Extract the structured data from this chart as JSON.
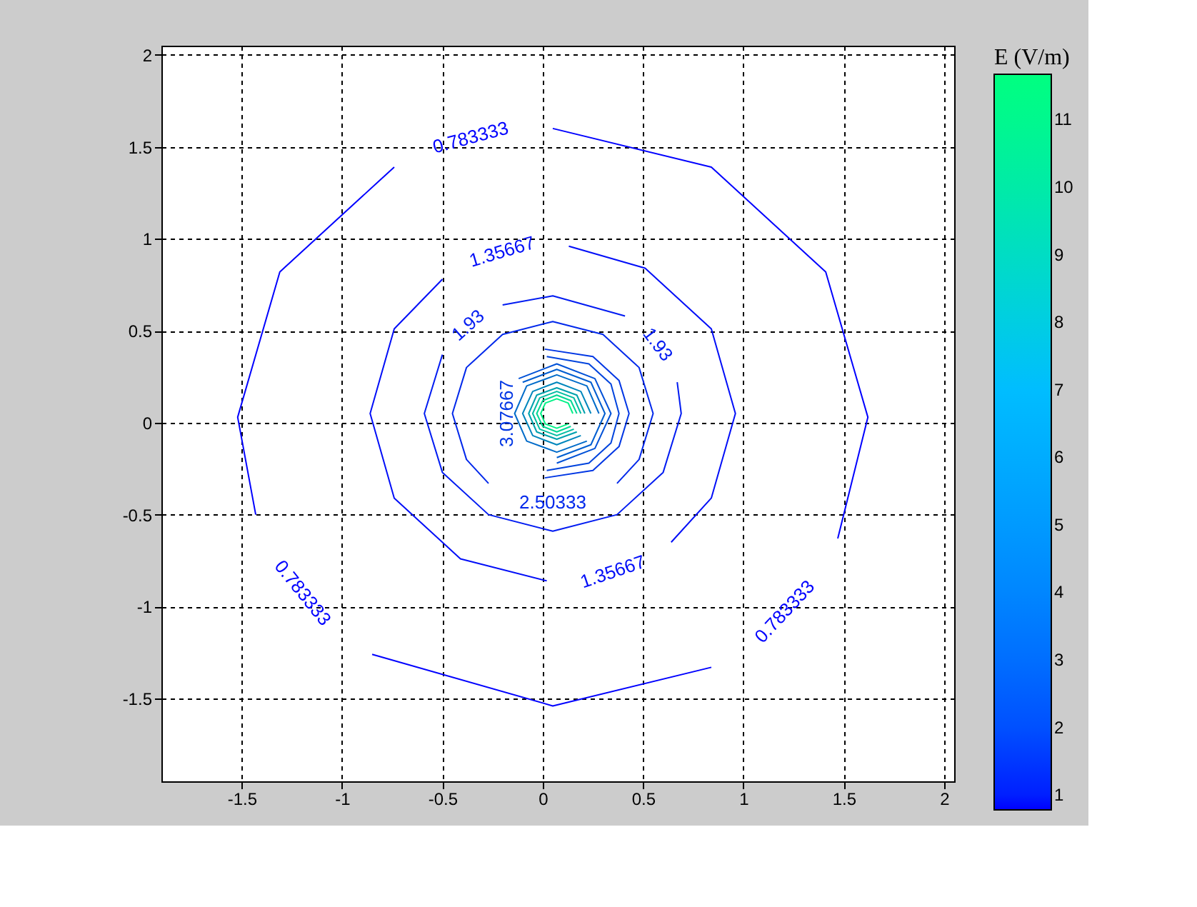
{
  "chart_data": {
    "type": "line",
    "clabel": "E (V/m)",
    "clim": [
      0.78,
      11.67
    ],
    "cticks": [
      1,
      2,
      3,
      4,
      5,
      6,
      7,
      8,
      9,
      10,
      11
    ],
    "xlim": [
      -1.9,
      2.05
    ],
    "ylim": [
      -1.95,
      2.05
    ],
    "xticks": [
      -1.5,
      -1,
      -0.5,
      0,
      0.5,
      1,
      1.5,
      2
    ],
    "yticks": [
      -1.5,
      -1,
      -0.5,
      0,
      0.5,
      1,
      1.5,
      2
    ],
    "grid": true,
    "line_style": "solid",
    "marker": "none",
    "series": [
      {
        "name": "0.783333",
        "color": "#0000ff",
        "x": [
          1.47,
          1.62,
          1.41,
          0.84,
          0.05,
          null,
          -0.74,
          -1.31,
          -1.52,
          -1.43,
          null,
          -0.85,
          0.05,
          0.84
        ],
        "values": [
          -0.63,
          0.03,
          0.82,
          1.39,
          1.6,
          null,
          1.39,
          0.82,
          0.03,
          -0.5,
          null,
          -1.26,
          -1.54,
          -1.33
        ]
      },
      {
        "name": "1.35667",
        "color": "#000df8",
        "x": [
          0.64,
          0.84,
          0.96,
          0.84,
          0.51,
          0.13,
          null,
          -0.5,
          -0.74,
          -0.86,
          -0.74,
          -0.41,
          0.02
        ],
        "values": [
          -0.65,
          -0.41,
          0.05,
          0.51,
          0.84,
          0.96,
          null,
          0.78,
          0.51,
          0.05,
          -0.41,
          -0.74,
          -0.86
        ]
      },
      {
        "name": "1.93",
        "color": "#001bf2",
        "x": [
          0.67,
          0.69,
          0.6,
          0.37,
          0.05,
          -0.27,
          -0.5,
          -0.59,
          -0.5,
          null,
          -0.2,
          0.05,
          0.41
        ],
        "values": [
          0.22,
          0.05,
          -0.27,
          -0.5,
          -0.59,
          -0.5,
          -0.27,
          0.05,
          0.37,
          null,
          0.64,
          0.69,
          0.58
        ]
      },
      {
        "name": "2.50333",
        "color": "#0028eb",
        "x": [
          0.37,
          0.48,
          0.55,
          0.48,
          0.3,
          0.05,
          -0.2,
          -0.38,
          -0.45,
          -0.38,
          -0.27
        ],
        "values": [
          -0.33,
          -0.2,
          0.05,
          0.3,
          0.48,
          0.55,
          0.48,
          0.3,
          0.05,
          -0.2,
          -0.33
        ]
      },
      {
        "name": "3.07667",
        "color": "#0036e4",
        "x": [
          0.01,
          0.25,
          0.38,
          0.43,
          0.38,
          0.25,
          0.01
        ],
        "values": [
          -0.3,
          -0.26,
          -0.13,
          0.05,
          0.23,
          0.36,
          0.4
        ]
      },
      {
        "color": "#0043dd",
        "x": [
          0.02,
          0.23,
          0.34,
          0.38,
          0.34,
          0.23,
          0.02
        ],
        "values": [
          -0.26,
          -0.22,
          -0.11,
          0.05,
          0.21,
          0.32,
          0.36
        ]
      },
      {
        "color": "#0051d7",
        "x": [
          0.07,
          0.26,
          0.34,
          0.26,
          0.07,
          -0.12
        ],
        "values": [
          -0.22,
          -0.14,
          0.05,
          0.24,
          0.32,
          0.24
        ]
      },
      {
        "color": "#005ed0",
        "x": [
          0.07,
          0.24,
          0.31,
          0.24,
          0.07,
          -0.1
        ],
        "values": [
          -0.19,
          -0.12,
          0.05,
          0.22,
          0.29,
          0.22
        ]
      },
      {
        "color": "#006bc9",
        "x": [
          0.28,
          0.22,
          0.07,
          -0.08,
          -0.14,
          -0.08,
          0.07,
          0.22
        ],
        "values": [
          0.05,
          0.2,
          0.26,
          0.2,
          0.05,
          -0.1,
          -0.16,
          -0.1
        ]
      },
      {
        "color": "#0086bc",
        "x": [
          0.24,
          0.19,
          0.07,
          -0.05,
          -0.1,
          -0.05,
          0.07,
          0.19
        ],
        "values": [
          0.05,
          0.17,
          0.22,
          0.17,
          0.05,
          -0.07,
          -0.12,
          -0.07
        ]
      },
      {
        "color": "#00a1ae",
        "x": [
          0.21,
          0.17,
          0.07,
          -0.03,
          -0.07,
          -0.03,
          0.07,
          0.17
        ],
        "values": [
          0.05,
          0.15,
          0.19,
          0.15,
          0.05,
          -0.05,
          -0.09,
          -0.05
        ]
      },
      {
        "color": "#00bca1",
        "x": [
          0.19,
          0.155,
          0.07,
          -0.015,
          -0.05,
          -0.015,
          0.07,
          0.155
        ],
        "values": [
          0.05,
          0.135,
          0.17,
          0.135,
          0.05,
          -0.035,
          -0.07,
          -0.035
        ]
      },
      {
        "color": "#00d794",
        "x": [
          0.17,
          0.14,
          0.07,
          0.0,
          -0.03,
          0.0,
          0.07,
          0.14
        ],
        "values": [
          0.05,
          0.12,
          0.15,
          0.12,
          0.05,
          -0.02,
          -0.05,
          -0.02
        ]
      },
      {
        "color": "#00f186",
        "x": [
          0.15,
          0.127,
          0.07,
          0.013,
          -0.01,
          0.013,
          0.07,
          0.127
        ],
        "values": [
          0.05,
          0.107,
          0.13,
          0.107,
          0.05,
          -0.007,
          -0.03,
          -0.007
        ]
      }
    ]
  }
}
